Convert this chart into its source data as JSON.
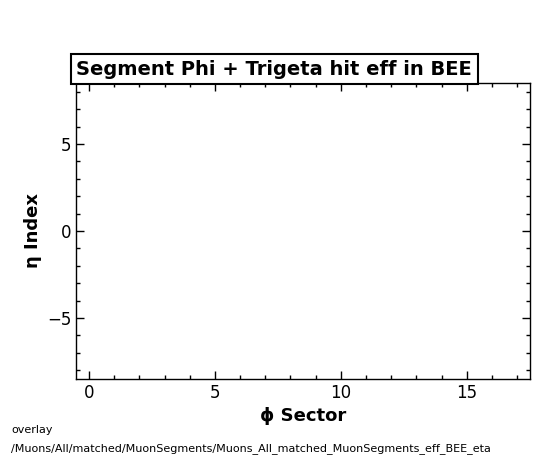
{
  "title": "Segment Phi + Trigeta hit eff in BEE",
  "xlabel": "ϕ Sector",
  "ylabel": "η Index",
  "xlim": [
    -0.5,
    17.5
  ],
  "ylim": [
    -8.5,
    8.5
  ],
  "xticks": [
    0,
    5,
    10,
    15
  ],
  "yticks": [
    -5,
    0,
    5
  ],
  "background_color": "#ffffff",
  "plot_bg_color": "#ffffff",
  "footer_line1": "overlay",
  "footer_line2": "/Muons/All/matched/MuonSegments/Muons_All_matched_MuonSegments_eff_BEE_eta",
  "title_fontsize": 14,
  "axis_label_fontsize": 13,
  "tick_fontsize": 12,
  "footer_fontsize": 8
}
